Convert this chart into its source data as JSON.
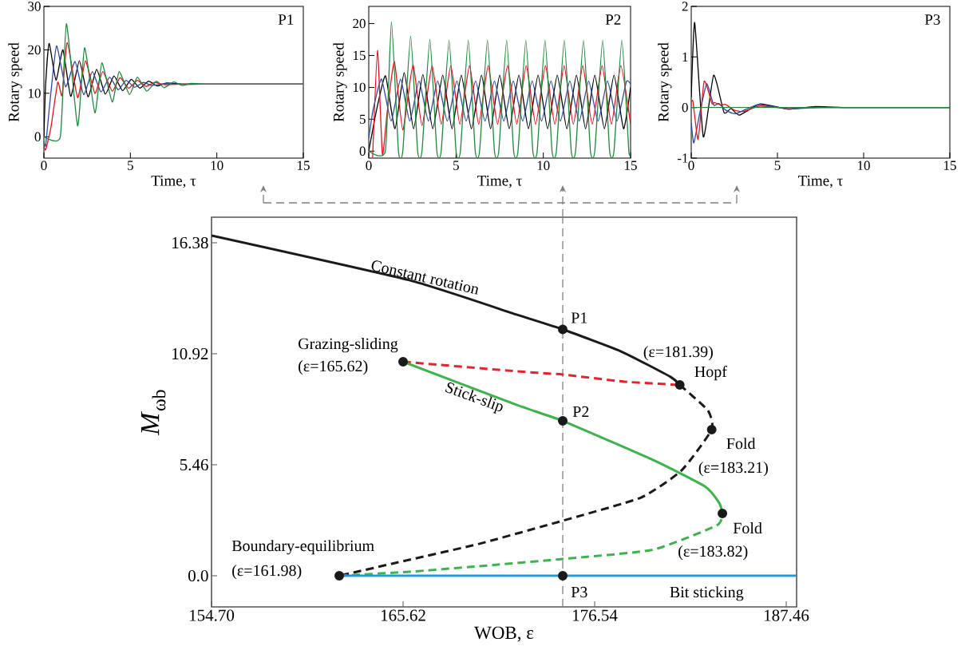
{
  "chart_data": [
    {
      "type": "line",
      "title": "P1",
      "xlabel": "Time, τ",
      "ylabel": "Rotary speed",
      "xlim": [
        0,
        15
      ],
      "ylim": [
        -4.9,
        30
      ],
      "xticks": [
        0,
        5,
        10,
        15
      ],
      "yticks": [
        0,
        10,
        20,
        30
      ],
      "series": [
        {
          "color": "#000000",
          "x": [
            0,
            0.1,
            0.3,
            0.7,
            1.1,
            1.55,
            2.05,
            2.55,
            3.05,
            3.55,
            4.05,
            4.55,
            5.05,
            5.55,
            6.05,
            6.55,
            7.1,
            8,
            9,
            15
          ],
          "values": [
            0,
            12,
            21.5,
            13,
            20,
            9.3,
            17.5,
            9.2,
            15.5,
            9.8,
            14,
            10.6,
            13.2,
            11.2,
            12.8,
            11.7,
            12.4,
            12.1,
            12.1,
            12.1
          ]
        },
        {
          "color": "#2b4aa8",
          "x": [
            0,
            0.1,
            0.35,
            0.73,
            1.25,
            1.8,
            2.3,
            2.8,
            3.3,
            3.8,
            4.3,
            4.75,
            5.25,
            5.75,
            6.25,
            7,
            8,
            15
          ],
          "values": [
            -1,
            -2,
            8,
            20.9,
            11.5,
            17.3,
            9.7,
            15,
            10.3,
            13.7,
            10.8,
            13,
            11.4,
            12.5,
            11.8,
            12.2,
            12.1,
            12.1
          ]
        },
        {
          "color": "#e8141c",
          "x": [
            0,
            0.1,
            0.4,
            0.8,
            1.05,
            1.35,
            1.95,
            2.4,
            2.95,
            3.4,
            3.95,
            4.4,
            4.9,
            5.4,
            5.9,
            6.4,
            7,
            8,
            15
          ],
          "values": [
            -2,
            -3,
            2,
            12.5,
            9.5,
            21.7,
            9,
            17.5,
            10,
            15,
            10.5,
            13.6,
            11.2,
            13,
            11.6,
            12.5,
            12,
            12.1,
            12.1
          ]
        },
        {
          "color": "#1b8a3c",
          "x": [
            0,
            0.95,
            1.3,
            1.95,
            2.35,
            2.95,
            3.35,
            3.95,
            4.35,
            4.95,
            5.4,
            5.95,
            6.5,
            6.95,
            7.5,
            8,
            8.5,
            9.5,
            15
          ],
          "values": [
            0,
            0,
            26,
            2.5,
            20.5,
            5.5,
            17,
            8,
            15,
            9.7,
            13.7,
            10.5,
            12.8,
            11.3,
            12.6,
            11.8,
            12.3,
            12.1,
            12.1
          ]
        }
      ]
    },
    {
      "type": "line",
      "title": "P2",
      "xlabel": "Time, τ",
      "ylabel": "Rotary speed",
      "xlim": [
        0,
        15
      ],
      "ylim": [
        -1.1,
        22.7
      ],
      "xticks": [
        0,
        5,
        10,
        15
      ],
      "yticks": [
        0,
        5,
        10,
        15,
        20
      ],
      "series": [
        {
          "color": "#000000",
          "x": [
            0,
            0.45,
            0.96,
            1.5,
            2.03,
            2.57,
            3.1,
            3.67,
            4.24,
            4.77,
            5.3,
            5.88,
            6.46,
            6.98,
            7.5,
            8.05,
            8.6,
            9.15,
            9.7,
            10.25,
            10.8,
            11.35,
            11.9,
            12.42,
            12.95,
            13.5,
            14.05,
            14.6,
            15
          ],
          "values": [
            0,
            6.5,
            11.8,
            3.5,
            12.3,
            3.5,
            12,
            3.5,
            11.9,
            3.5,
            11.9,
            3.5,
            11.9,
            3.5,
            11.9,
            3.5,
            11.9,
            3.5,
            11.9,
            3.5,
            11.9,
            3.5,
            11.9,
            3.5,
            11.9,
            3.5,
            11.9,
            3.5,
            10
          ]
        },
        {
          "color": "#2b4aa8",
          "x": [
            0,
            0.25,
            0.73,
            1.28,
            1.82,
            2.35,
            2.88,
            3.42,
            3.95,
            4.5,
            5.05,
            5.58,
            6.12,
            6.66,
            7.2,
            7.74,
            8.28,
            8.82,
            9.36,
            9.9,
            10.44,
            10.98,
            11.52,
            12.06,
            12.6,
            13.14,
            13.68,
            14.22,
            14.76,
            15
          ],
          "values": [
            2,
            6.5,
            11.3,
            4.7,
            11.3,
            4.7,
            11,
            4.7,
            11,
            4.7,
            11,
            4.7,
            11,
            4.7,
            11,
            4.7,
            11,
            4.7,
            11,
            4.7,
            11,
            4.7,
            11,
            4.7,
            11,
            4.7,
            11,
            4.7,
            10.9,
            10.5
          ]
        },
        {
          "color": "#e8141c",
          "x": [
            0.22,
            0.5,
            0.78,
            1.05,
            1.47,
            1.95,
            2.53,
            3.05,
            3.63,
            4.15,
            4.7,
            5.22,
            5.77,
            6.3,
            6.84,
            7.38,
            7.95,
            8.48,
            9.02,
            9.56,
            10.12,
            10.66,
            11.19,
            11.72,
            12.26,
            12.8,
            13.37,
            13.9,
            14.44,
            15
          ],
          "values": [
            -1,
            15.8,
            -0.5,
            6,
            14,
            3.3,
            13.5,
            4,
            13.4,
            4.2,
            13.4,
            4.2,
            13.4,
            4.2,
            13.4,
            4.2,
            13.4,
            4.2,
            13.4,
            4.2,
            13.4,
            4.2,
            13.4,
            4.2,
            13.4,
            4.2,
            13.4,
            4.2,
            13.4,
            4.2
          ]
        },
        {
          "color": "#1b8a3c",
          "x": [
            0,
            0.95,
            1.3,
            1.7,
            1.95,
            2.4,
            2.8,
            3.05,
            3.5,
            3.9,
            4.15,
            4.6,
            5.0,
            5.25,
            5.7,
            6.1,
            6.35,
            6.8,
            7.2,
            7.45,
            7.9,
            8.3,
            8.55,
            9.0,
            9.4,
            9.65,
            10.1,
            10.5,
            10.75,
            11.2,
            11.6,
            11.85,
            12.3,
            12.7,
            12.95,
            13.4,
            13.8,
            14.05,
            14.5,
            14.9,
            15
          ],
          "values": [
            0,
            0,
            20.3,
            0,
            0,
            18,
            0,
            0,
            17.5,
            0,
            0,
            17.4,
            0,
            0,
            17.4,
            0,
            0,
            17.4,
            0,
            0,
            17.4,
            0,
            0,
            17.4,
            0,
            0,
            17.4,
            0,
            0,
            17.4,
            0,
            0,
            17.4,
            0,
            0,
            17.4,
            0,
            0,
            17.4,
            0,
            0
          ]
        }
      ]
    },
    {
      "type": "line",
      "title": "P3",
      "xlabel": "Time, τ",
      "ylabel": "Rotary speed",
      "xlim": [
        0,
        15
      ],
      "ylim": [
        -1,
        2
      ],
      "xticks": [
        0,
        5,
        10,
        15
      ],
      "yticks": [
        -1,
        0,
        1,
        2
      ],
      "series": [
        {
          "color": "#000000",
          "x": [
            0,
            0.2,
            0.7,
            1.3,
            1.9,
            2.3,
            2.8,
            4.0,
            5.6,
            7.2,
            9,
            15
          ],
          "values": [
            0.2,
            1.68,
            -0.58,
            0.64,
            -0.1,
            -0.02,
            -0.15,
            0.07,
            -0.03,
            0.02,
            0,
            0
          ]
        },
        {
          "color": "#2b4aa8",
          "x": [
            0,
            0.15,
            0.5,
            0.9,
            1.3,
            1.6,
            2.0,
            2.6,
            3.9,
            5.6,
            7.5,
            15
          ],
          "values": [
            -0.3,
            -0.7,
            -0.1,
            0.47,
            0.05,
            0.08,
            -0.05,
            -0.12,
            0.06,
            -0.03,
            0,
            0
          ]
        },
        {
          "color": "#e8141c",
          "x": [
            0,
            0.1,
            0.4,
            0.75,
            1.2,
            1.35,
            1.7,
            2.0,
            2.5,
            3.0,
            4.0,
            5.6,
            7,
            15
          ],
          "values": [
            0.1,
            0.12,
            -0.63,
            0.52,
            0.08,
            0.1,
            0.05,
            0.06,
            -0.05,
            -0.08,
            0.03,
            -0.02,
            0,
            0
          ]
        },
        {
          "color": "#1b8a3c",
          "x": [
            0,
            15
          ],
          "values": [
            0,
            0
          ]
        }
      ]
    },
    {
      "type": "line",
      "xlabel": "WOB, ε",
      "ylabel": "*M*$_{ωb}$",
      "xlim": [
        154.7,
        188.05
      ],
      "ylim": [
        -1.53,
        17.64
      ],
      "xticks": [
        {
          "value": 154.7,
          "label": "154.70"
        },
        165.62,
        176.54,
        187.46
      ],
      "yticks": [
        {
          "value": 0,
          "label": "0.0"
        },
        5.46,
        10.92,
        16.38
      ],
      "ref_lines": [
        {
          "axis": "x",
          "value": 174.72,
          "color": "#808080",
          "line_style": "dashed"
        }
      ],
      "series": [
        {
          "color": "#1a1a1a",
          "x": [
            154.7,
            165.98,
            172.08,
            174.72,
            178.04,
            180.86,
            181.39
          ],
          "values": [
            16.74,
            14.54,
            12.85,
            12.12,
            11.04,
            9.79,
            9.39
          ]
        },
        {
          "color": "#1a1a1a",
          "line_style": "dashed",
          "x": [
            181.39,
            182.99,
            183.21,
            181.5,
            179.18,
            174.72,
            169.94,
            165.98,
            161.98
          ],
          "values": [
            9.39,
            8.14,
            7.19,
            5.19,
            3.85,
            2.71,
            1.57,
            0.79,
            0
          ]
        },
        {
          "color": "#e5232b",
          "line_style": "dashed",
          "x": [
            165.62,
            172.08,
            174.72,
            178.22,
            181.39
          ],
          "values": [
            10.53,
            10.06,
            9.9,
            9.55,
            9.39
          ]
        },
        {
          "color": "#3cb44a",
          "x": [
            165.62,
            172.08,
            174.72,
            179.86,
            182.82,
            183.64,
            183.82
          ],
          "values": [
            10.53,
            8.41,
            7.62,
            5.7,
            4.4,
            3.58,
            3.07
          ]
        },
        {
          "color": "#3cb44a",
          "line_style": "dashed",
          "x": [
            161.98,
            165.98,
            169.94,
            174.72,
            179.86,
            183.5,
            183.82
          ],
          "values": [
            0,
            0.2,
            0.47,
            0.83,
            1.28,
            2.48,
            3.07
          ]
        },
        {
          "color": "#1e9ad6",
          "x": [
            161.98,
            188.05
          ],
          "values": [
            0,
            0
          ]
        },
        {
          "type": "scatter",
          "marker": "circle",
          "color": "#1a1a1a",
          "x": [
            161.98,
            165.62,
            174.72,
            174.72,
            174.72,
            181.39,
            183.21,
            183.82
          ],
          "values": [
            0,
            10.53,
            12.12,
            7.62,
            0,
            9.39,
            7.19,
            3.07
          ]
        }
      ],
      "annotations": [
        {
          "text": "Constant rotation",
          "x": 166.8,
          "y": 14.31
        },
        {
          "text": "Stick-slip",
          "x": 169.81,
          "y": 9.2
        },
        {
          "text": "Grazing-sliding",
          "x": 165.62,
          "y": 10.53
        },
        {
          "text": "(ε=165.62)",
          "x": 165.62,
          "y": 10.53
        },
        {
          "text": "Boundary-equilibrium",
          "x": 161.98,
          "y": 0
        },
        {
          "text": "(ε=161.98)",
          "x": 161.98,
          "y": 0
        },
        {
          "text": "(ε=181.39)",
          "x": 181.39,
          "y": 9.39
        },
        {
          "text": "Hopf",
          "x": 181.39,
          "y": 9.39
        },
        {
          "text": "Fold",
          "x": 183.21,
          "y": 7.19
        },
        {
          "text": "(ε=183.21)",
          "x": 183.21,
          "y": 7.19
        },
        {
          "text": "Fold",
          "x": 183.82,
          "y": 3.07
        },
        {
          "text": "(ε=183.82)",
          "x": 183.82,
          "y": 3.07
        },
        {
          "text": "P1",
          "x": 174.72,
          "y": 12.12
        },
        {
          "text": "P2",
          "x": 174.72,
          "y": 7.62
        },
        {
          "text": "P3",
          "x": 174.72,
          "y": 0
        },
        {
          "text": "Bit sticking",
          "x": 180.8,
          "y": 0
        }
      ]
    }
  ]
}
